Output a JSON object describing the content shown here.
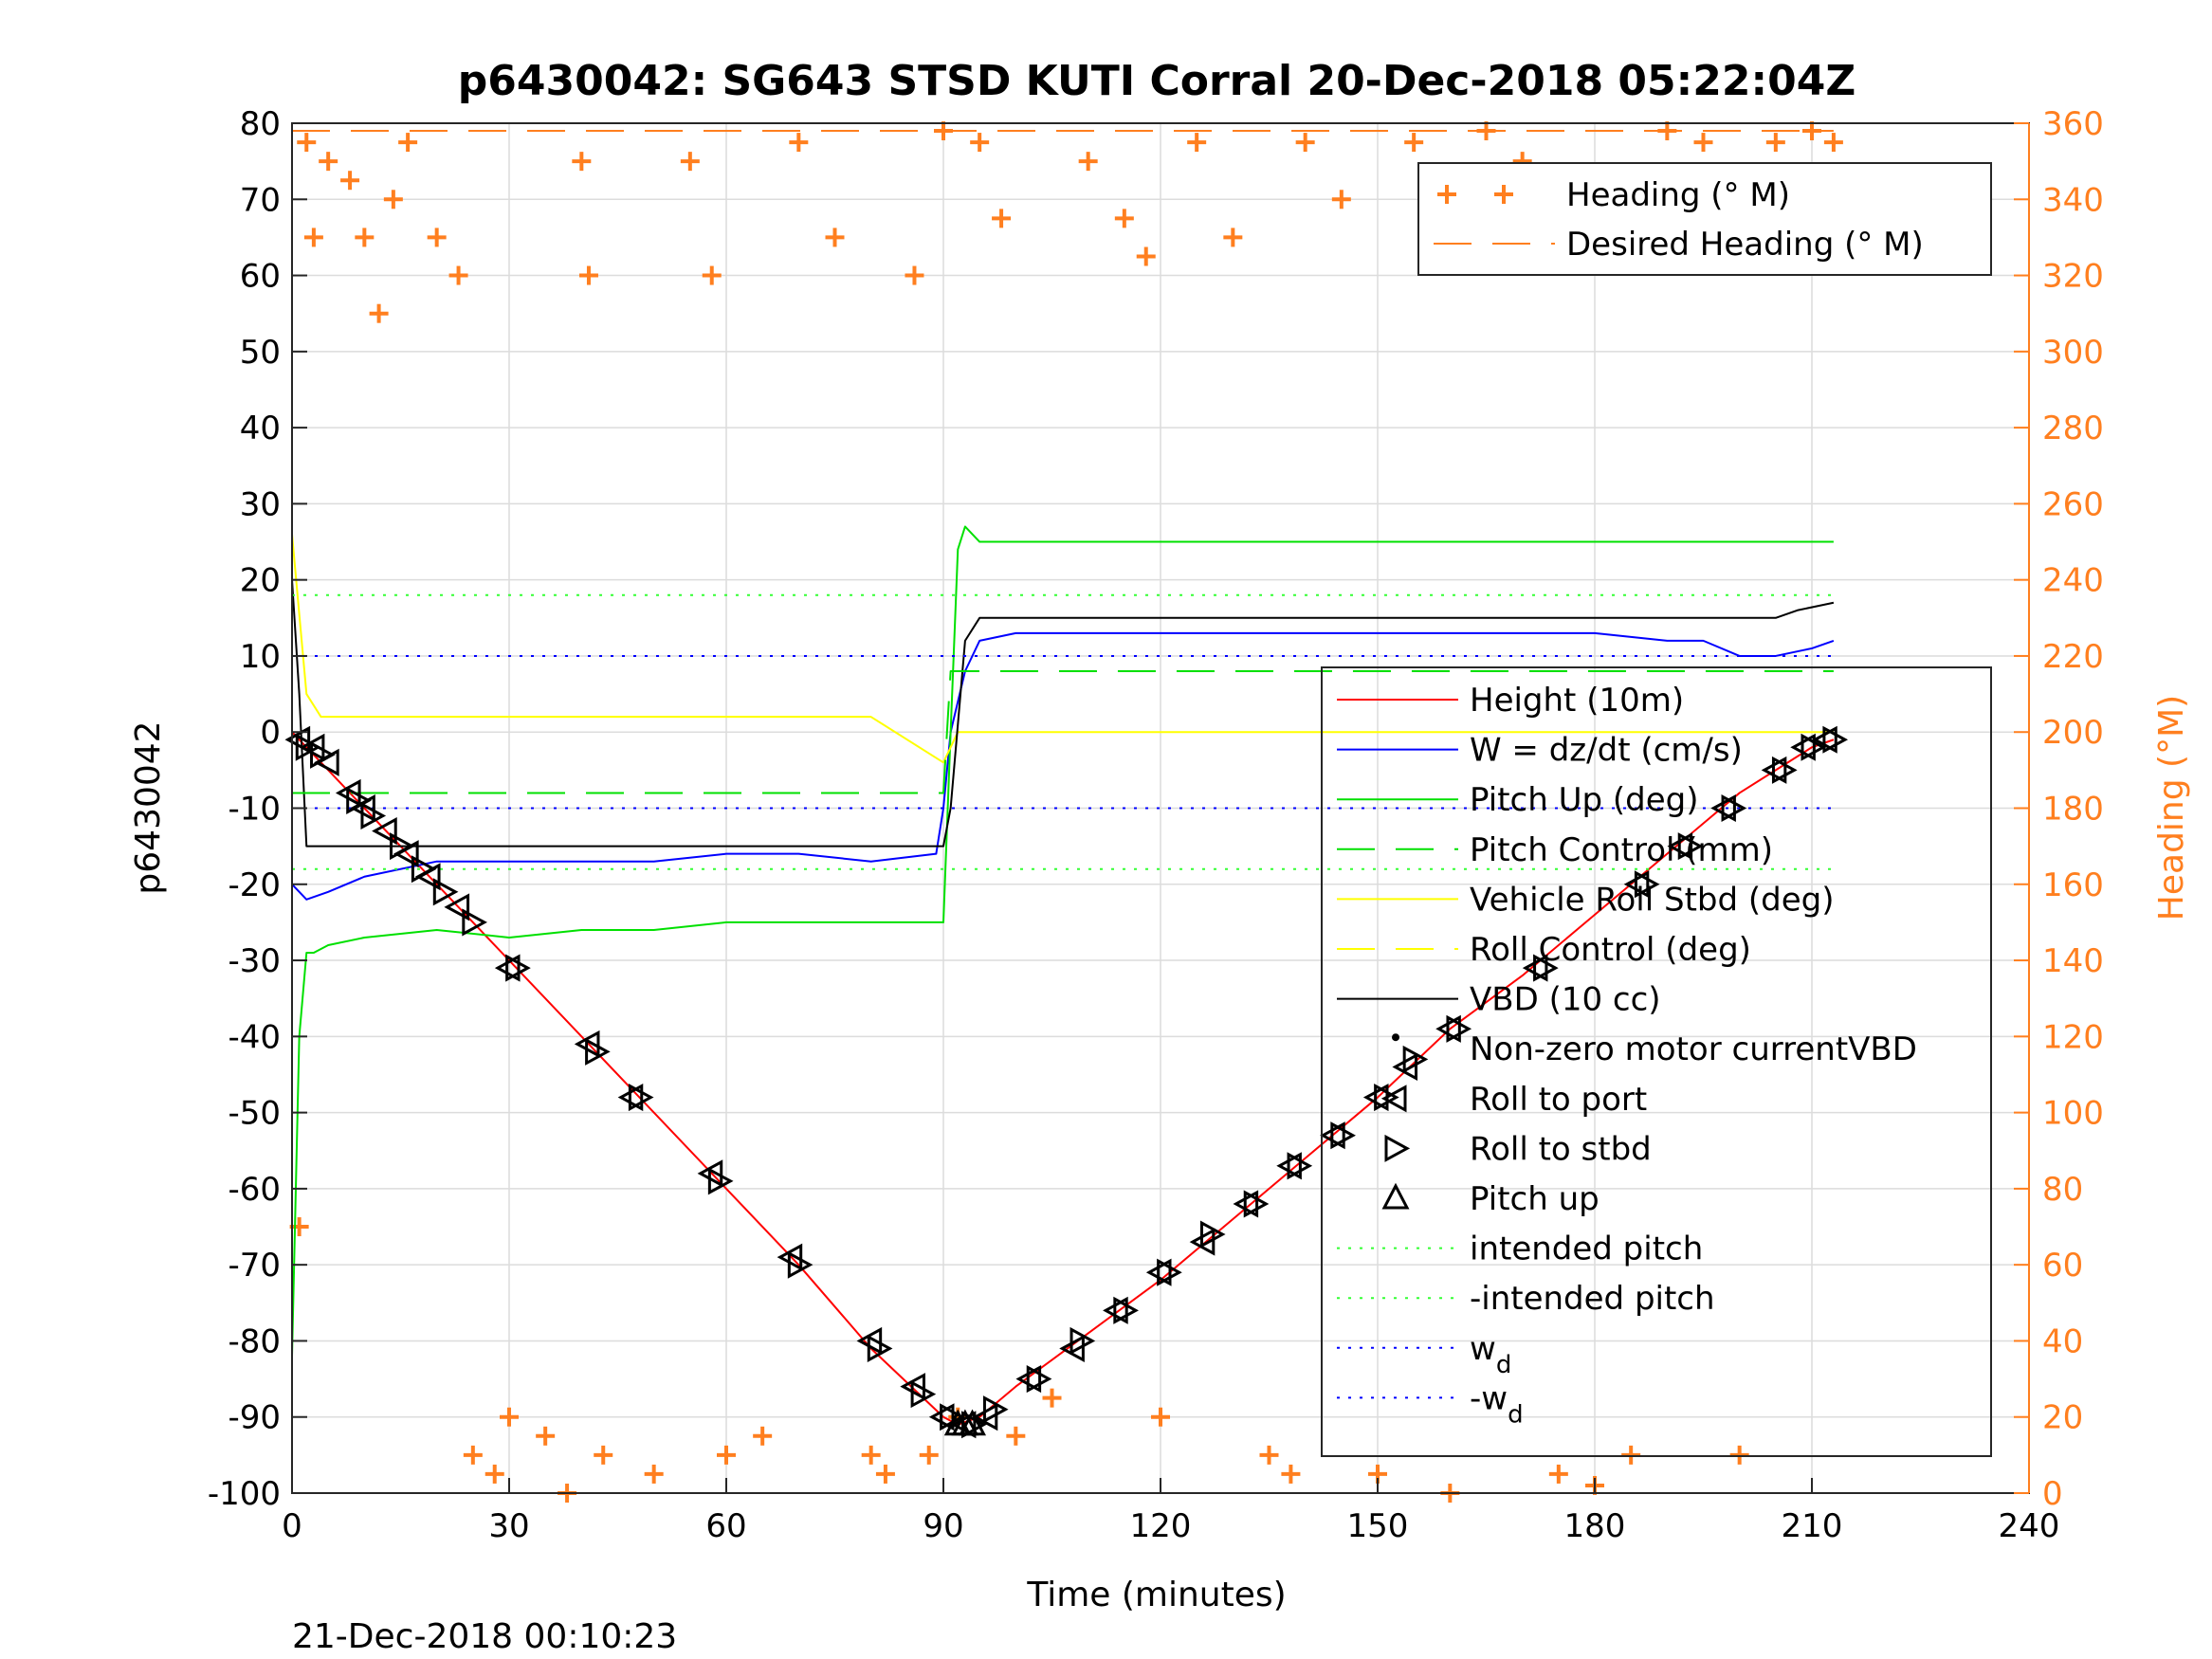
{
  "colors": {
    "heading": "#FF7F1F",
    "height": "#FF0000",
    "w": "#0000FF",
    "pitch": "#00E000",
    "roll": "#FFFF00",
    "vbd": "#000000",
    "markers": "#000000",
    "intended_pitch": "#33FF33",
    "w_d": "#0000FF"
  },
  "chart_data": {
    "type": "line",
    "title": "p6430042: SG643 STSD KUTI Corral 20-Dec-2018 05:22:04Z",
    "xlabel": "Time (minutes)",
    "ylabel": "p6430042",
    "y2label": "Heading (°M)",
    "footer_text": "21-Dec-2018 00:10:23",
    "xlim": [
      0,
      240
    ],
    "ylim": [
      -100,
      80
    ],
    "y2lim": [
      0,
      360
    ],
    "xticks": [
      0,
      30,
      60,
      90,
      120,
      150,
      180,
      210,
      240
    ],
    "xtick_labels": [
      "0",
      "30",
      "60",
      "90",
      "120",
      "150",
      "180",
      "210",
      "240"
    ],
    "yticks": [
      -100,
      -90,
      -80,
      -70,
      -60,
      -50,
      -40,
      -30,
      -20,
      -10,
      0,
      10,
      20,
      30,
      40,
      50,
      60,
      70,
      80
    ],
    "ytick_labels": [
      "-100",
      "-90",
      "-80",
      "-70",
      "-60",
      "-50",
      "-40",
      "-30",
      "-20",
      "-10",
      "0",
      "10",
      "20",
      "30",
      "40",
      "50",
      "60",
      "70",
      "80"
    ],
    "y2ticks": [
      0,
      20,
      40,
      60,
      80,
      100,
      120,
      140,
      160,
      180,
      200,
      220,
      240,
      260,
      280,
      300,
      320,
      340,
      360
    ],
    "y2tick_labels": [
      "0",
      "20",
      "40",
      "60",
      "80",
      "100",
      "120",
      "140",
      "160",
      "180",
      "200",
      "220",
      "240",
      "260",
      "280",
      "300",
      "320",
      "340",
      "360"
    ],
    "grid": true,
    "legends": [
      {
        "placement": "top-right",
        "entries": [
          "Heading (° M)",
          "Desired Heading (° M)"
        ]
      },
      {
        "placement": "right",
        "entries": [
          "Height (10m)",
          "W = dz/dt (cm/s)",
          "Pitch Up (deg)",
          "Pitch Control (mm)",
          "Vehicle Roll Stbd (deg)",
          "Roll Control (deg)",
          "VBD (10 cc)",
          "Non-zero motor currentVBD",
          "Roll to port",
          "Roll to stbd",
          "Pitch up",
          "intended pitch",
          "-intended pitch",
          "w",
          "-w"
        ],
        "subscripts": {
          "13": "d",
          "14": "d"
        }
      }
    ],
    "series": [
      {
        "name": "Height (10m)",
        "axis": "left",
        "x": [
          0,
          1,
          2,
          5,
          10,
          15,
          20,
          25,
          30,
          40,
          50,
          60,
          70,
          80,
          90,
          92,
          95,
          100,
          110,
          120,
          130,
          140,
          150,
          160,
          170,
          180,
          190,
          200,
          205,
          210,
          213
        ],
        "y": [
          0,
          -1,
          -2,
          -5,
          -10,
          -15,
          -20,
          -25,
          -30,
          -40,
          -50,
          -60,
          -70,
          -81,
          -90,
          -91,
          -90,
          -86,
          -79,
          -72,
          -64,
          -56,
          -48,
          -39,
          -32,
          -24,
          -16,
          -8,
          -5,
          -2,
          -1
        ]
      },
      {
        "name": "W = dz/dt (cm/s)",
        "axis": "left",
        "x": [
          0,
          2,
          5,
          10,
          20,
          30,
          40,
          50,
          60,
          70,
          80,
          89,
          90,
          91,
          93,
          95,
          100,
          110,
          120,
          130,
          140,
          150,
          160,
          170,
          180,
          190,
          195,
          200,
          205,
          210,
          213
        ],
        "y": [
          -20,
          -22,
          -21,
          -19,
          -17,
          -17,
          -17,
          -17,
          -16,
          -16,
          -17,
          -16,
          -10,
          0,
          8,
          12,
          13,
          13,
          13,
          13,
          13,
          13,
          13,
          13,
          13,
          12,
          12,
          10,
          10,
          11,
          12
        ]
      },
      {
        "name": "Pitch Up (deg)",
        "axis": "left",
        "x": [
          0,
          1,
          2,
          3,
          5,
          10,
          20,
          30,
          40,
          50,
          60,
          70,
          80,
          90,
          91,
          92,
          93,
          95,
          100,
          120,
          140,
          160,
          180,
          200,
          213
        ],
        "y": [
          -82,
          -40,
          -29,
          -29,
          -28,
          -27,
          -26,
          -27,
          -26,
          -26,
          -25,
          -25,
          -25,
          -25,
          0,
          24,
          27,
          25,
          25,
          25,
          25,
          25,
          25,
          25,
          25
        ]
      },
      {
        "name": "Vehicle Roll Stbd (deg)",
        "axis": "left",
        "x": [
          0,
          2,
          4,
          6,
          10,
          20,
          30,
          40,
          50,
          60,
          70,
          80,
          90,
          92,
          100,
          120,
          140,
          160,
          180,
          200,
          213
        ],
        "y": [
          26,
          5,
          2,
          2,
          2,
          2,
          2,
          2,
          2,
          2,
          2,
          2,
          -4,
          0,
          0,
          0,
          0,
          0,
          0,
          0,
          0
        ]
      },
      {
        "name": "VBD (10 cc)",
        "axis": "left",
        "x": [
          0,
          1,
          2,
          90,
          91,
          93,
          95,
          200,
          205,
          208,
          213
        ],
        "y": [
          20,
          5,
          -15,
          -15,
          -10,
          12,
          15,
          15,
          15,
          16,
          17
        ]
      },
      {
        "name": "Pitch Control (mm)",
        "axis": "left",
        "x": [
          0,
          90,
          91,
          213
        ],
        "y": [
          -8,
          -8,
          8,
          8
        ]
      },
      {
        "name": "intended pitch",
        "axis": "left",
        "x": [
          0,
          213
        ],
        "y": [
          18,
          18
        ]
      },
      {
        "name": "-intended pitch",
        "axis": "left",
        "x": [
          0,
          213
        ],
        "y": [
          -18,
          -18
        ]
      },
      {
        "name": "w",
        "subscript": "d",
        "axis": "left",
        "x": [
          0,
          213
        ],
        "y": [
          10,
          10
        ]
      },
      {
        "name": "-w",
        "subscript": "d",
        "axis": "left",
        "x": [
          0,
          213
        ],
        "y": [
          -10,
          -10
        ]
      },
      {
        "name": "Desired Heading (° M)",
        "axis": "right",
        "x": [
          0,
          213
        ],
        "y": [
          358,
          358
        ]
      },
      {
        "name": "Heading (° M)",
        "axis": "right",
        "x": [
          1,
          2,
          3,
          5,
          8,
          10,
          12,
          14,
          16,
          20,
          23,
          25,
          28,
          30,
          35,
          38,
          40,
          41,
          43,
          50,
          55,
          58,
          60,
          65,
          70,
          75,
          80,
          82,
          86,
          88,
          90,
          92,
          95,
          98,
          100,
          105,
          110,
          115,
          118,
          120,
          125,
          130,
          135,
          138,
          140,
          145,
          150,
          155,
          160,
          165,
          170,
          175,
          180,
          185,
          190,
          195,
          200,
          205,
          210,
          213
        ],
        "y": [
          70,
          355,
          330,
          350,
          345,
          330,
          310,
          340,
          355,
          330,
          320,
          10,
          5,
          20,
          15,
          0,
          350,
          320,
          10,
          5,
          350,
          320,
          10,
          15,
          355,
          330,
          10,
          5,
          320,
          10,
          358,
          20,
          355,
          335,
          15,
          25,
          350,
          335,
          325,
          20,
          355,
          330,
          10,
          5,
          355,
          340,
          5,
          355,
          0,
          358,
          350,
          5,
          2,
          10,
          358,
          355,
          10,
          355,
          358,
          355
        ]
      }
    ],
    "markers": {
      "roll_to_port": {
        "x": [
          1,
          3,
          5,
          8,
          10,
          13,
          16,
          19,
          23,
          30,
          41,
          47,
          58,
          69,
          80,
          86,
          90,
          93,
          96,
          102,
          108,
          114,
          120,
          126,
          132,
          138,
          144,
          150,
          154,
          160,
          172,
          186,
          192,
          198,
          205,
          209,
          212
        ],
        "y": [
          -1,
          -2,
          -4,
          -8,
          -10,
          -13,
          -16,
          -19,
          -23,
          -31,
          -41,
          -48,
          -58,
          -69,
          -80,
          -86,
          -90,
          -91,
          -90,
          -85,
          -81,
          -76,
          -71,
          -67,
          -62,
          -57,
          -53,
          -48,
          -44,
          -39,
          -31,
          -20,
          -15,
          -10,
          -5,
          -2,
          -1
        ]
      },
      "roll_to_stbd": {
        "x": [
          2,
          4,
          9,
          11,
          15,
          18,
          21,
          25,
          31,
          42,
          48,
          59,
          70,
          81,
          87,
          91,
          94,
          97,
          103,
          109,
          115,
          121,
          127,
          133,
          139,
          145,
          151,
          155,
          161,
          173,
          187,
          193,
          199,
          206,
          210,
          213
        ],
        "y": [
          -2,
          -3,
          -9,
          -11,
          -15,
          -18,
          -21,
          -25,
          -31,
          -42,
          -48,
          -59,
          -70,
          -81,
          -87,
          -90,
          -91,
          -89,
          -85,
          -80,
          -76,
          -71,
          -66,
          -62,
          -57,
          -53,
          -48,
          -43,
          -39,
          -31,
          -20,
          -15,
          -10,
          -5,
          -2,
          -1
        ]
      },
      "pitch_up": {
        "x": [
          92,
          93,
          94
        ],
        "y": [
          -91,
          -91,
          -91
        ]
      }
    }
  }
}
